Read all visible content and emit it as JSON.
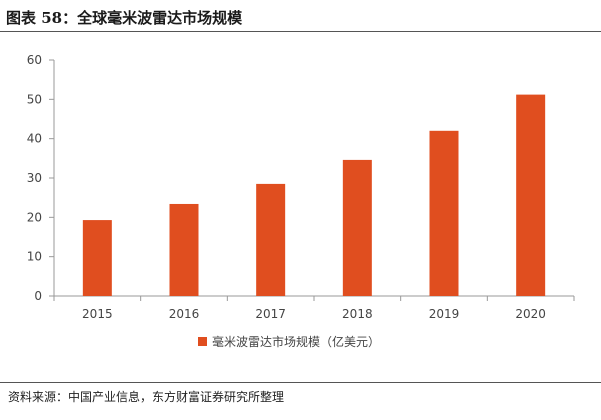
{
  "figure": {
    "title": "图表 58：全球毫米波雷达市场规模",
    "source": "资料来源：中国产业信息，东方财富证券研究所整理"
  },
  "colors": {
    "bar": "#E04E1F",
    "axis": "#999999",
    "text": "#444444"
  },
  "chart_data": {
    "type": "bar",
    "title": "",
    "xlabel": "",
    "ylabel": "",
    "categories": [
      "2015",
      "2016",
      "2017",
      "2018",
      "2019",
      "2020"
    ],
    "series": [
      {
        "name": "毫米波雷达市场规模（亿美元）",
        "values": [
          19.3,
          23.4,
          28.5,
          34.6,
          42.0,
          51.2
        ]
      }
    ],
    "ylim": [
      0,
      60
    ],
    "yticks": [
      0,
      10,
      20,
      30,
      40,
      50,
      60
    ],
    "grid": false,
    "legend_position": "bottom-center"
  }
}
